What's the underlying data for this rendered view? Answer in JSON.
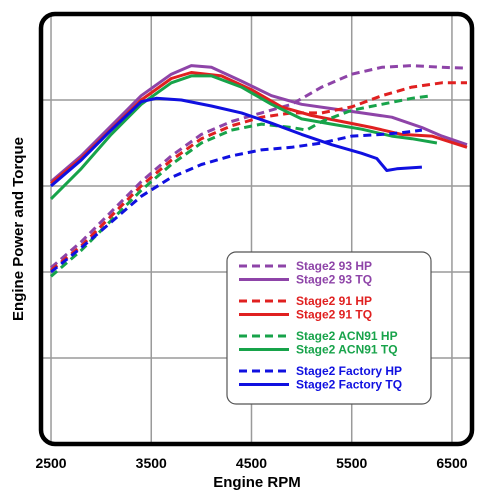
{
  "chart_data": {
    "type": "line",
    "title": "",
    "xlabel": "Engine RPM",
    "ylabel": "Engine Power and Torque",
    "xlim": [
      2400,
      6700
    ],
    "xticks": [
      2500,
      3500,
      4500,
      5500,
      6500
    ],
    "xtick_labels": [
      "2500",
      "3500",
      "4500",
      "5500",
      "6500"
    ],
    "y_tick_labels_shown": false,
    "ylim": [
      0,
      5
    ],
    "grid": true,
    "legend_position": "bottom-right",
    "series": [
      {
        "name": "Stage2 93 HP",
        "color": "#8e44a8",
        "dash": true,
        "points": [
          [
            2500,
            2.05
          ],
          [
            2800,
            2.35
          ],
          [
            3100,
            2.7
          ],
          [
            3400,
            3.05
          ],
          [
            3700,
            3.35
          ],
          [
            4000,
            3.6
          ],
          [
            4300,
            3.75
          ],
          [
            4600,
            3.85
          ],
          [
            4900,
            3.95
          ],
          [
            5200,
            4.15
          ],
          [
            5500,
            4.3
          ],
          [
            5800,
            4.38
          ],
          [
            6100,
            4.4
          ],
          [
            6400,
            4.38
          ],
          [
            6650,
            4.37
          ]
        ]
      },
      {
        "name": "Stage2 93 TQ",
        "color": "#8e44a8",
        "dash": false,
        "points": [
          [
            2500,
            3.05
          ],
          [
            2800,
            3.35
          ],
          [
            3100,
            3.7
          ],
          [
            3400,
            4.05
          ],
          [
            3700,
            4.3
          ],
          [
            3900,
            4.4
          ],
          [
            4100,
            4.38
          ],
          [
            4400,
            4.22
          ],
          [
            4700,
            4.05
          ],
          [
            5000,
            3.95
          ],
          [
            5300,
            3.9
          ],
          [
            5600,
            3.85
          ],
          [
            5900,
            3.8
          ],
          [
            6200,
            3.68
          ],
          [
            6400,
            3.58
          ],
          [
            6650,
            3.48
          ]
        ]
      },
      {
        "name": "Stage2 91 HP",
        "color": "#e02020",
        "dash": true,
        "points": [
          [
            2500,
            2.02
          ],
          [
            2800,
            2.3
          ],
          [
            3100,
            2.65
          ],
          [
            3400,
            3.0
          ],
          [
            3700,
            3.3
          ],
          [
            4000,
            3.55
          ],
          [
            4300,
            3.7
          ],
          [
            4600,
            3.8
          ],
          [
            4900,
            3.85
          ],
          [
            5200,
            3.85
          ],
          [
            5500,
            3.92
          ],
          [
            5800,
            4.05
          ],
          [
            6100,
            4.15
          ],
          [
            6400,
            4.2
          ],
          [
            6650,
            4.2
          ]
        ]
      },
      {
        "name": "Stage2 91 TQ",
        "color": "#e02020",
        "dash": false,
        "points": [
          [
            2500,
            3.03
          ],
          [
            2800,
            3.32
          ],
          [
            3100,
            3.66
          ],
          [
            3400,
            4.0
          ],
          [
            3700,
            4.25
          ],
          [
            3900,
            4.32
          ],
          [
            4200,
            4.28
          ],
          [
            4500,
            4.12
          ],
          [
            4800,
            3.92
          ],
          [
            5100,
            3.82
          ],
          [
            5400,
            3.75
          ],
          [
            5700,
            3.68
          ],
          [
            6000,
            3.6
          ],
          [
            6300,
            3.58
          ],
          [
            6650,
            3.45
          ]
        ]
      },
      {
        "name": "Stage2 ACN91 HP",
        "color": "#17a34a",
        "dash": true,
        "points": [
          [
            2500,
            1.95
          ],
          [
            2800,
            2.25
          ],
          [
            3100,
            2.6
          ],
          [
            3400,
            2.95
          ],
          [
            3700,
            3.25
          ],
          [
            4000,
            3.5
          ],
          [
            4300,
            3.65
          ],
          [
            4600,
            3.72
          ],
          [
            4900,
            3.68
          ],
          [
            5050,
            3.65
          ],
          [
            5200,
            3.75
          ],
          [
            5500,
            3.88
          ],
          [
            5800,
            3.95
          ],
          [
            6100,
            4.02
          ],
          [
            6300,
            4.05
          ]
        ]
      },
      {
        "name": "Stage2 ACN91 TQ",
        "color": "#17a34a",
        "dash": false,
        "points": [
          [
            2500,
            2.85
          ],
          [
            2800,
            3.2
          ],
          [
            3100,
            3.6
          ],
          [
            3400,
            3.95
          ],
          [
            3700,
            4.2
          ],
          [
            3900,
            4.28
          ],
          [
            4100,
            4.28
          ],
          [
            4400,
            4.15
          ],
          [
            4700,
            3.95
          ],
          [
            5000,
            3.78
          ],
          [
            5300,
            3.72
          ],
          [
            5600,
            3.66
          ],
          [
            5900,
            3.58
          ],
          [
            6100,
            3.55
          ],
          [
            6350,
            3.5
          ]
        ]
      },
      {
        "name": "Stage2 Factory HP",
        "color": "#1010e0",
        "dash": true,
        "points": [
          [
            2500,
            2.0
          ],
          [
            2800,
            2.28
          ],
          [
            3100,
            2.58
          ],
          [
            3400,
            2.88
          ],
          [
            3700,
            3.1
          ],
          [
            4000,
            3.25
          ],
          [
            4300,
            3.35
          ],
          [
            4600,
            3.42
          ],
          [
            4900,
            3.45
          ],
          [
            5200,
            3.5
          ],
          [
            5500,
            3.58
          ],
          [
            5800,
            3.6
          ],
          [
            6000,
            3.62
          ],
          [
            6200,
            3.65
          ]
        ]
      },
      {
        "name": "Stage2 Factory TQ",
        "color": "#1010e0",
        "dash": false,
        "points": [
          [
            2500,
            3.0
          ],
          [
            2800,
            3.3
          ],
          [
            3100,
            3.65
          ],
          [
            3400,
            3.98
          ],
          [
            3550,
            4.02
          ],
          [
            3800,
            4.0
          ],
          [
            4100,
            3.93
          ],
          [
            4400,
            3.85
          ],
          [
            4700,
            3.73
          ],
          [
            5000,
            3.6
          ],
          [
            5300,
            3.48
          ],
          [
            5600,
            3.38
          ],
          [
            5750,
            3.32
          ],
          [
            5850,
            3.18
          ],
          [
            5950,
            3.2
          ],
          [
            6200,
            3.22
          ]
        ]
      }
    ]
  }
}
